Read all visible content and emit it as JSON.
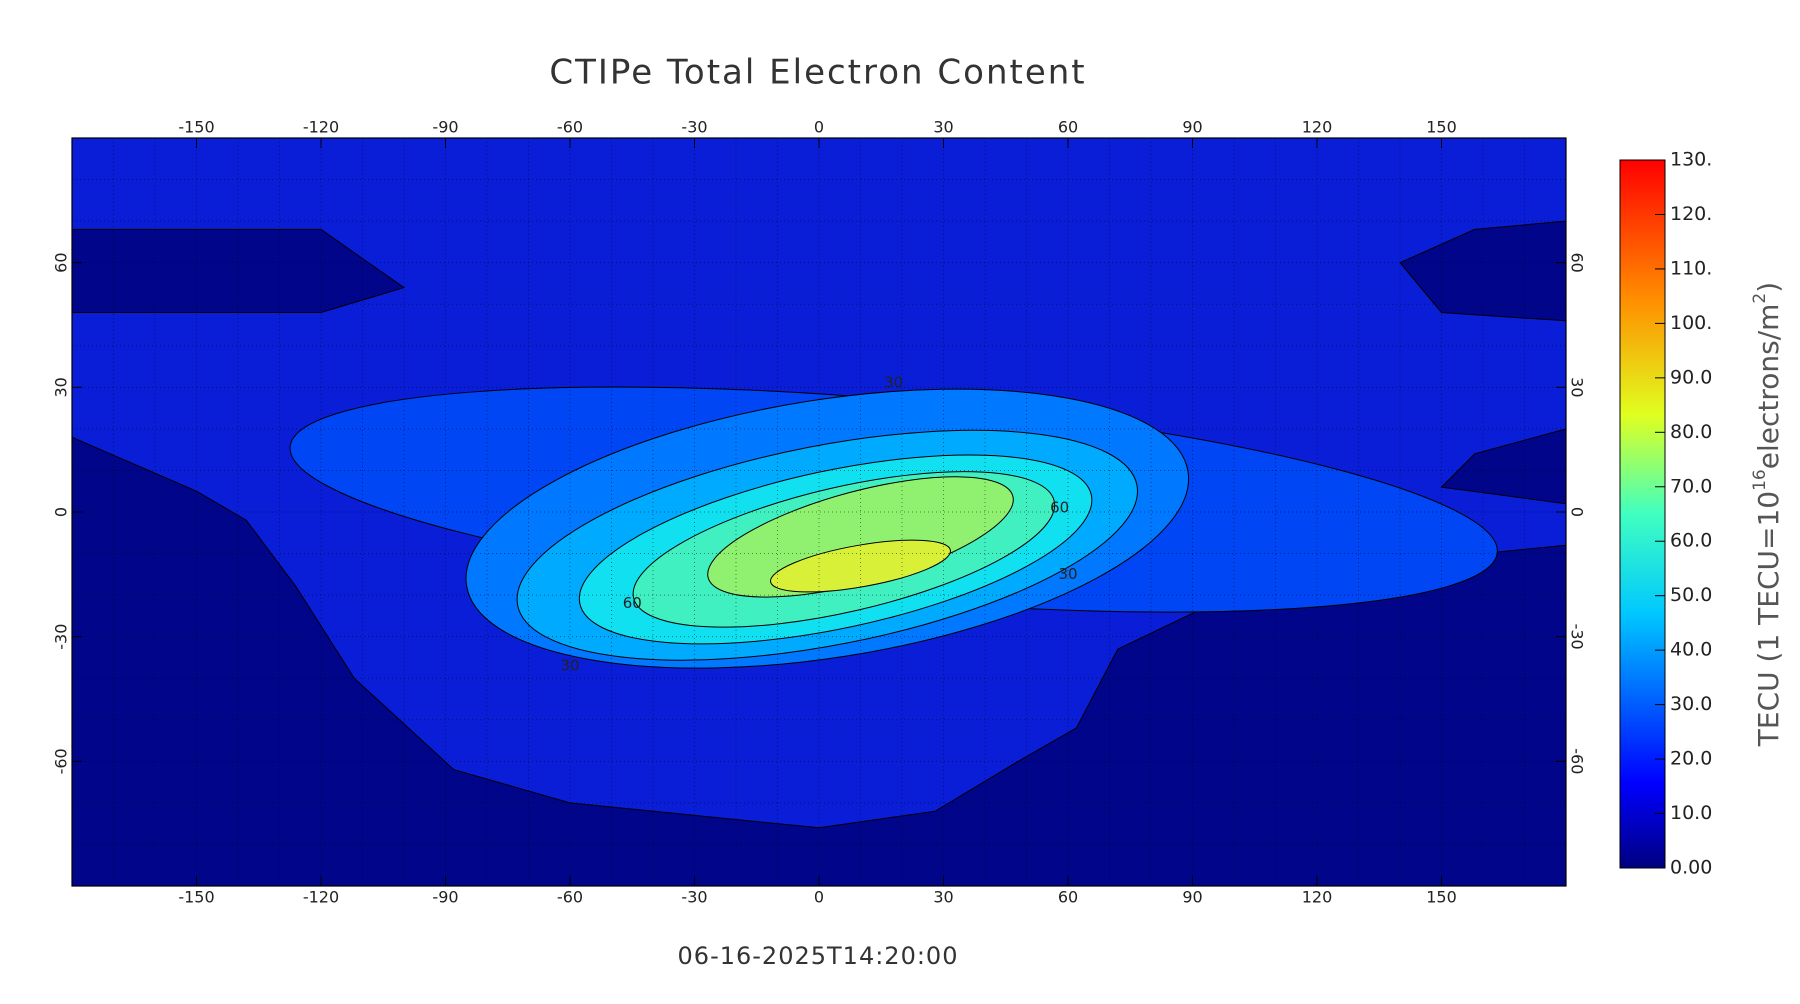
{
  "title": "CTIPe Total Electron Content",
  "timestamp": "06-16-2025T14:20:00",
  "map": {
    "xlim": [
      -180,
      180
    ],
    "ylim": [
      -90,
      90
    ],
    "xticks": [
      -150,
      -120,
      -90,
      -60,
      -30,
      0,
      30,
      60,
      90,
      120,
      150
    ],
    "yticks": [
      -60,
      -30,
      0,
      30,
      60
    ],
    "grid": true,
    "contour_levels": [
      0,
      10,
      20,
      30,
      40,
      50,
      60,
      70,
      80
    ],
    "contour_colors": [
      "#00058a",
      "#0a1ed8",
      "#0046f5",
      "#0078ff",
      "#00aaff",
      "#10e0f0",
      "#40f0c0",
      "#90f070",
      "#d8f038"
    ],
    "contour_labels": [
      30,
      60,
      60,
      30,
      30
    ]
  },
  "colorbar": {
    "lim": [
      0,
      130
    ],
    "ticks": [
      {
        "value": 0,
        "label": "0.00"
      },
      {
        "value": 10,
        "label": "10.0"
      },
      {
        "value": 20,
        "label": "20.0"
      },
      {
        "value": 30,
        "label": "30.0"
      },
      {
        "value": 40,
        "label": "40.0"
      },
      {
        "value": 50,
        "label": "50.0"
      },
      {
        "value": 60,
        "label": "60.0"
      },
      {
        "value": 70,
        "label": "70.0"
      },
      {
        "value": 80,
        "label": "80.0"
      },
      {
        "value": 90,
        "label": "90.0"
      },
      {
        "value": 100,
        "label": "100."
      },
      {
        "value": 110,
        "label": "110."
      },
      {
        "value": 120,
        "label": "120."
      },
      {
        "value": 130,
        "label": "130."
      }
    ],
    "label": [
      "TECU (1 TECU=10",
      "16",
      "electrons/m",
      "2",
      ")"
    ]
  }
}
